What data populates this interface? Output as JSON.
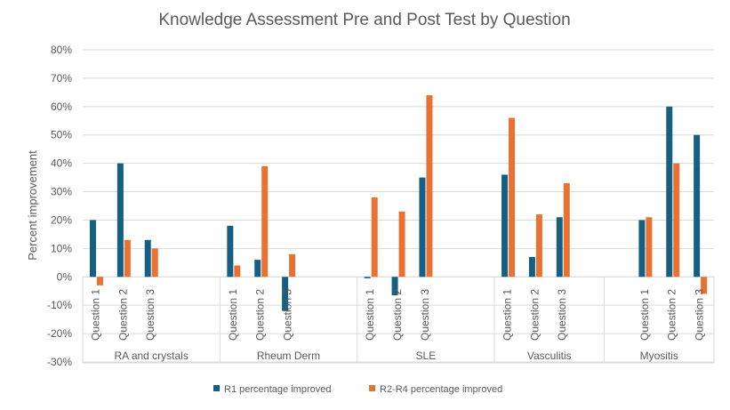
{
  "chart_data": {
    "type": "bar",
    "title": "Knowledge Assessment Pre and Post Test by Question",
    "xlabel": "",
    "ylabel": "Percent improvement",
    "ylim": [
      -30,
      80
    ],
    "yticks": [
      "-30%",
      "-20%",
      "-10%",
      "0%",
      "10%",
      "20%",
      "30%",
      "40%",
      "50%",
      "60%",
      "70%",
      "80%"
    ],
    "grid": true,
    "legend_position": "bottom",
    "groups": [
      {
        "name": "RA and crystals",
        "categories": [
          "Question 1",
          "Question 2",
          "Question 3",
          "",
          ""
        ]
      },
      {
        "name": "Rheum Derm",
        "categories": [
          "Question 1",
          "Question 2",
          "Question 3",
          "",
          ""
        ]
      },
      {
        "name": "SLE",
        "categories": [
          "Question 1",
          "Question 2",
          "Question 3",
          "",
          ""
        ]
      },
      {
        "name": "Vasculitis",
        "categories": [
          "Question 1",
          "Question 2",
          "Question 3",
          ""
        ]
      },
      {
        "name": "Myositis",
        "categories": [
          "",
          "Question 1",
          "Question 2",
          "Question 3"
        ]
      }
    ],
    "series": [
      {
        "name": "R1 percentage improved",
        "color": "#156082",
        "values": [
          20,
          40,
          13,
          null,
          null,
          18,
          6,
          -12,
          null,
          null,
          -0.5,
          -6.5,
          35,
          null,
          null,
          36,
          7,
          21,
          null,
          null,
          20,
          60,
          50
        ]
      },
      {
        "name": "R2-R4 percentage improved",
        "color": "#E97132",
        "values": [
          -3,
          13,
          10,
          null,
          null,
          4,
          39,
          8,
          null,
          null,
          28,
          23,
          64,
          null,
          null,
          56,
          22,
          33,
          null,
          null,
          21,
          40,
          -6
        ]
      }
    ]
  }
}
